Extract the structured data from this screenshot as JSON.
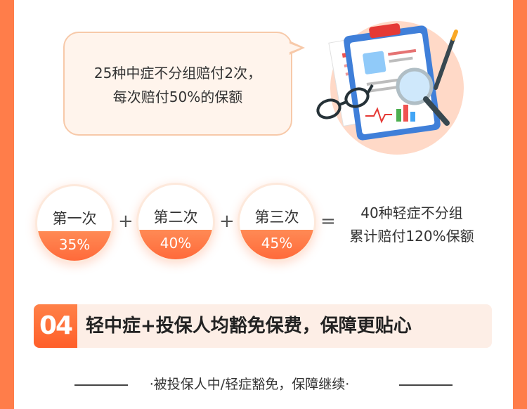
{
  "bubble": {
    "line1": "25种中症不分组赔付2次，",
    "line2": "每次赔付50%的保额"
  },
  "circles": [
    {
      "label": "第一次",
      "pct": "35%"
    },
    {
      "label": "第二次",
      "pct": "40%"
    },
    {
      "label": "第三次",
      "pct": "45%"
    }
  ],
  "ops": {
    "plus": "+",
    "equals": "="
  },
  "result": {
    "line1": "40种轻症不分组",
    "line2": "累计赔付120%保额"
  },
  "banner": {
    "number": "04",
    "title": "轻中症+投保人均豁免保费，保障更贴心"
  },
  "footer": {
    "text": "·被投保人中/轻症豁免，保障继续·"
  },
  "colors": {
    "accent": "#ff6a3a",
    "background": "#ff7d4a"
  }
}
